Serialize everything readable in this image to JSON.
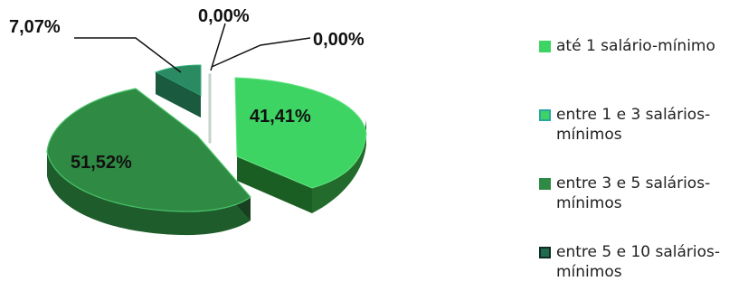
{
  "chart_data": {
    "type": "pie",
    "title": "",
    "slices": [
      {
        "name": "até 1 salário-mínimo",
        "value": 41.41,
        "label": "41,41%",
        "color": "#3dd463"
      },
      {
        "name": "entre 1 e 3 salários-mínimos",
        "value": 0.0,
        "label": "0,00%",
        "color": "#7de3a0"
      },
      {
        "name": "entre 3 e 5 salários-mínimos",
        "value": 51.52,
        "label": "51,52%",
        "color": "#2f8a43"
      },
      {
        "name": "entre 5 e 10 salários-mínimos",
        "value": 7.07,
        "label": "7,07%",
        "color": "#1f6b4f"
      },
      {
        "name": "",
        "value": 0.0,
        "label": "0,00%",
        "color": "#c9d6cd"
      }
    ],
    "style": "3d-exploded",
    "legend": "right"
  },
  "legend": {
    "items": [
      {
        "line1": "até 1 salário-mínimo",
        "line2": "",
        "color": "#3dd463",
        "border": "#3dd463"
      },
      {
        "line1": "entre 1 e 3 salários-",
        "line2": "mínimos",
        "color": "#3dd463",
        "border": "#2aa6a0"
      },
      {
        "line1": "entre 3 e 5 salários-",
        "line2": "mínimos",
        "color": "#2f8a43",
        "border": "#2f8a43"
      },
      {
        "line1": "entre 5 e 10 salários-",
        "line2": "mínimos",
        "color": "#1f6b4f",
        "border": "#0f2d20"
      }
    ]
  }
}
